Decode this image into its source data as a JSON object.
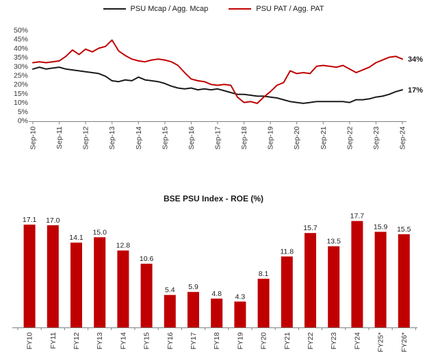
{
  "chart_data": [
    {
      "type": "line",
      "title": "",
      "x_labels": [
        "Sep-10",
        "Sep-11",
        "Sep-12",
        "Sep-13",
        "Sep-14",
        "Sep-15",
        "Sep-16",
        "Sep-17",
        "Sep-18",
        "Sep-19",
        "Sep-20",
        "Sep-21",
        "Sep-22",
        "Sep-23",
        "Sep-24"
      ],
      "points_per_label": 4,
      "ylim": [
        0,
        50
      ],
      "ytick_step": 5,
      "ytick_suffix": "%",
      "legend_position": "top",
      "grid": false,
      "series": [
        {
          "name": "PSU Mcap / Agg. Mcap",
          "color": "#1a1a1a",
          "end_label": "17%",
          "values": [
            28.5,
            29.5,
            28.5,
            29,
            29.5,
            28.5,
            28,
            27.5,
            27,
            26.5,
            26,
            24.5,
            22,
            21.5,
            22.5,
            22,
            24,
            22.5,
            22,
            21.5,
            20.5,
            19,
            18,
            17.5,
            18,
            17,
            17.5,
            17,
            17.5,
            16.5,
            15.5,
            14.5,
            14.5,
            14,
            13.5,
            13.5,
            13,
            12.5,
            11.5,
            10.5,
            10,
            9.5,
            10,
            10.5,
            10.5,
            10.5,
            10.5,
            10.5,
            10,
            11.5,
            11.5,
            12,
            13,
            13.5,
            14.5,
            16,
            17
          ]
        },
        {
          "name": "PSU PAT / Agg. PAT",
          "color": "#c00000",
          "end_label": "34%",
          "values": [
            32,
            32.5,
            32,
            32.5,
            33,
            35.5,
            39,
            36.5,
            39.5,
            38,
            40,
            41,
            44.5,
            38.5,
            36,
            34,
            33,
            32.5,
            33.5,
            34,
            33.5,
            32.5,
            30.5,
            26.5,
            23,
            22,
            21.5,
            20,
            19.5,
            20,
            19.5,
            13,
            10,
            10.5,
            9.5,
            13,
            16,
            19.5,
            21,
            27.5,
            26,
            26.5,
            26,
            30,
            30.5,
            30,
            29.5,
            30.5,
            28.5,
            26.5,
            28,
            29.5,
            32,
            33.5,
            35,
            35.5,
            34
          ]
        }
      ]
    },
    {
      "type": "bar",
      "title": "BSE PSU Index - ROE (%)",
      "categories": [
        "FY10",
        "FY11",
        "FY12",
        "FY13",
        "FY14",
        "FY15",
        "FY16",
        "FY17",
        "FY18",
        "FY19",
        "FY20",
        "FY21",
        "FY22",
        "FY23",
        "FY24",
        "FY25*",
        "FY26*"
      ],
      "values": [
        17.1,
        17.0,
        14.1,
        15.0,
        12.8,
        10.6,
        5.4,
        5.9,
        4.8,
        4.3,
        8.1,
        11.8,
        15.7,
        13.5,
        17.7,
        15.9,
        15.5
      ],
      "bar_color": "#c00000",
      "ylim": [
        0,
        18
      ],
      "grid": false
    }
  ]
}
